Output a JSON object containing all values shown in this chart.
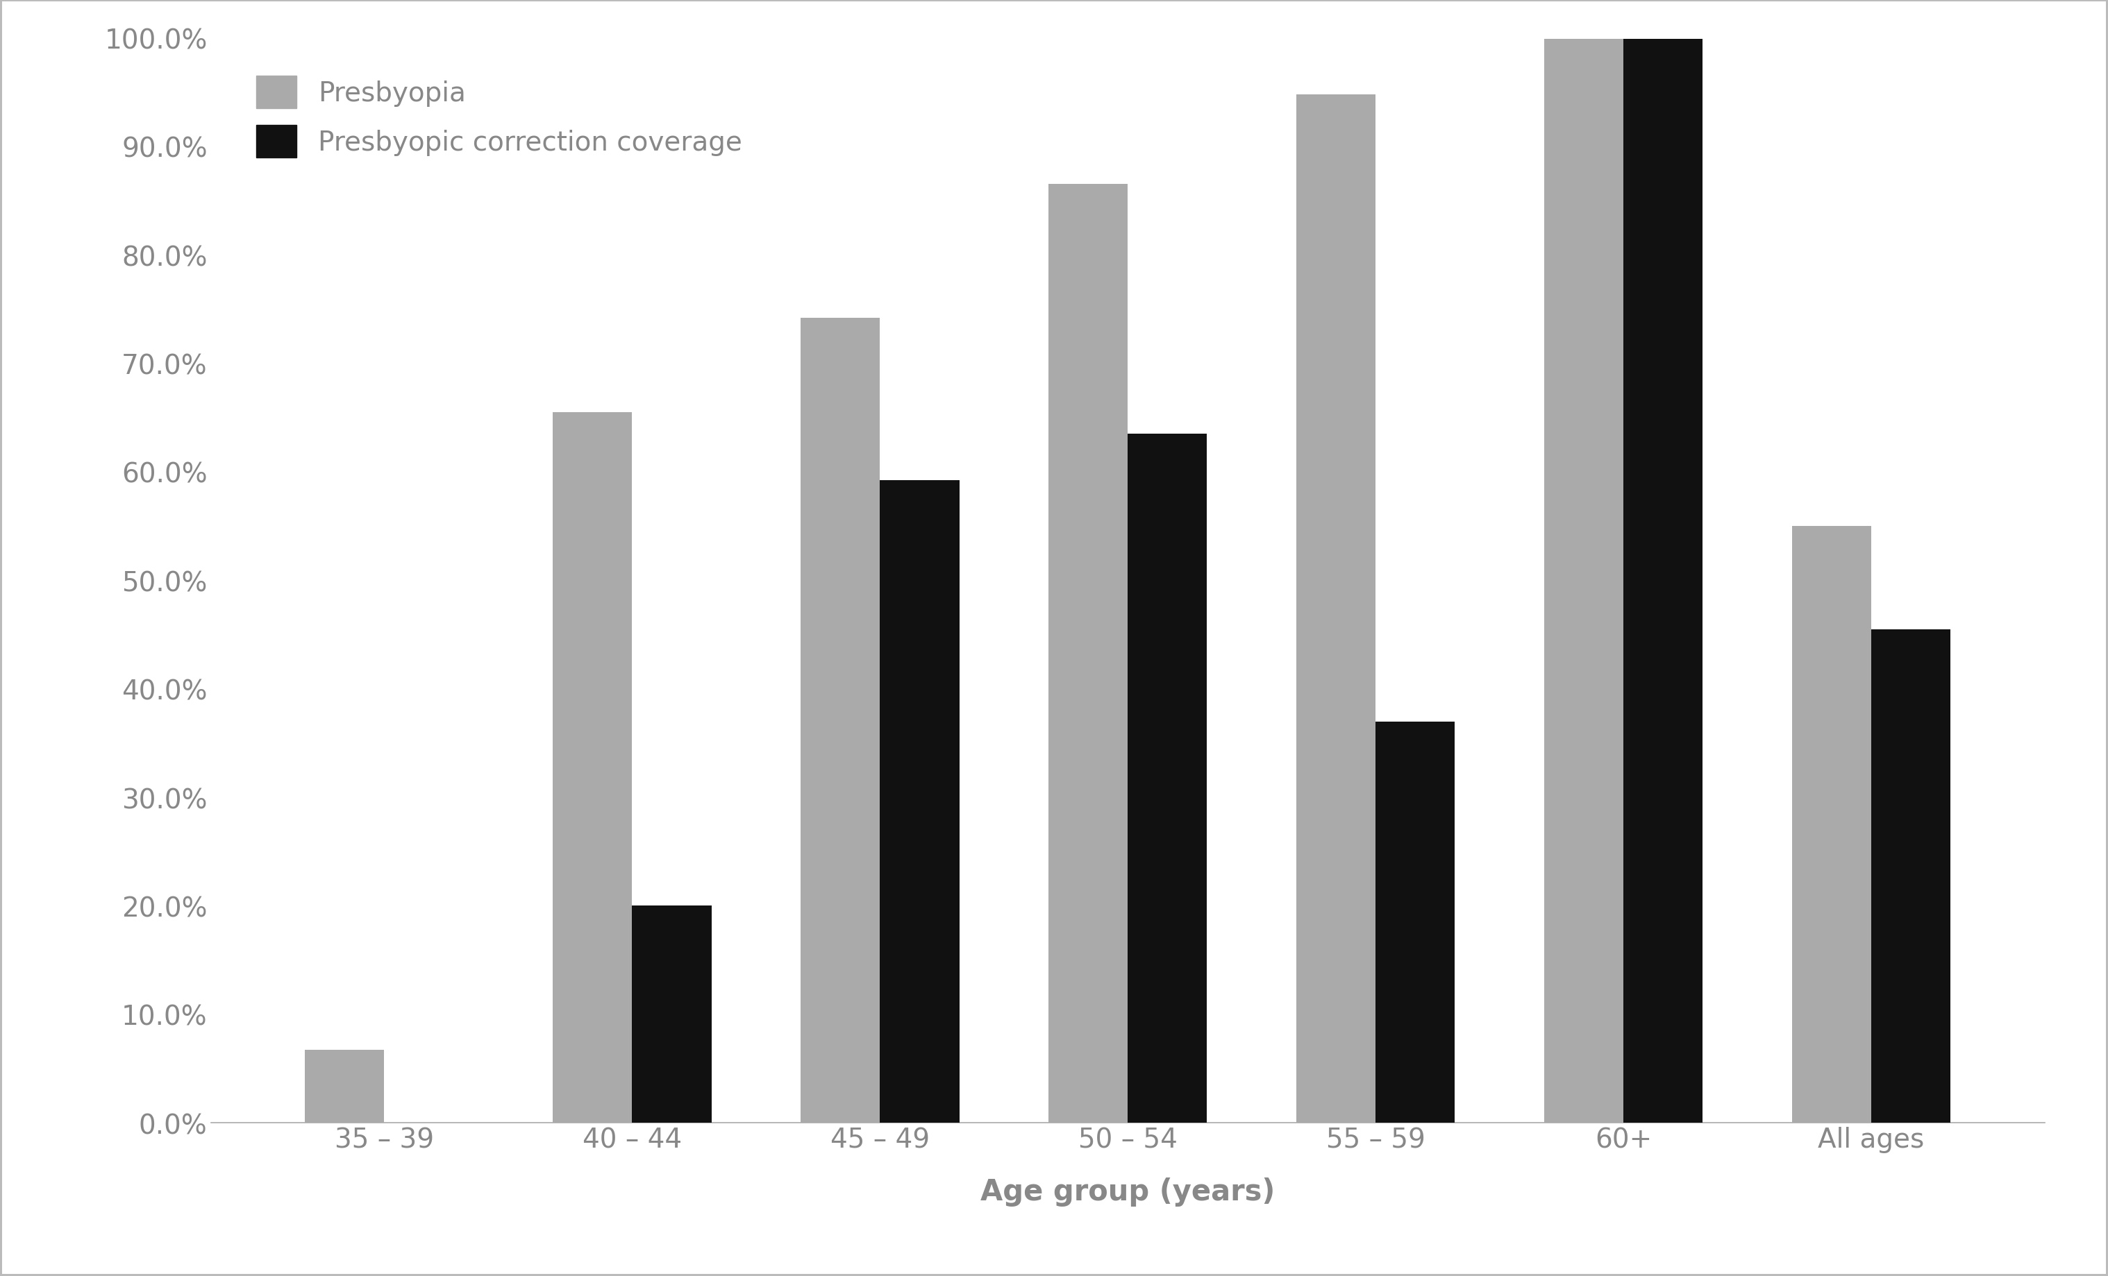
{
  "categories": [
    "35 – 39",
    "40 – 44",
    "45 – 49",
    "50 – 54",
    "55 – 59",
    "60+",
    "All ages"
  ],
  "presbyopia": [
    0.067,
    0.655,
    0.742,
    0.865,
    0.948,
    0.999,
    0.55
  ],
  "correction": [
    0.0,
    0.2,
    0.592,
    0.635,
    0.37,
    0.999,
    0.455
  ],
  "presbyopia_color": "#aaaaaa",
  "correction_color": "#111111",
  "legend_presbyopia": "Presbyopia",
  "legend_correction": "Presbyopic correction coverage",
  "xlabel": "Age group (years)",
  "ylim": [
    0.0,
    1.0
  ],
  "yticks": [
    0.0,
    0.1,
    0.2,
    0.3,
    0.4,
    0.5,
    0.6,
    0.7,
    0.8,
    0.9,
    1.0
  ],
  "ytick_labels": [
    "0.0%",
    "10.0%",
    "20.0%",
    "30.0%",
    "40.0%",
    "50.0%",
    "60.0%",
    "70.0%",
    "80.0%",
    "90.0%",
    "100.0%"
  ],
  "bar_width": 0.32,
  "background_color": "#ffffff",
  "outer_border_color": "#bbbbbb",
  "spine_color": "#aaaaaa",
  "tick_color": "#888888",
  "label_color": "#888888",
  "label_fontsize": 30,
  "tick_fontsize": 28,
  "legend_fontsize": 28
}
